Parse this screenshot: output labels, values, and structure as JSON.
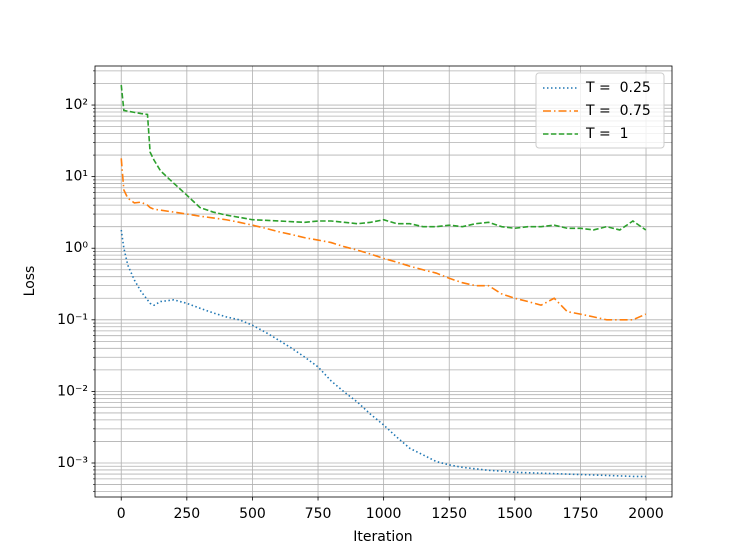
{
  "chart_data": {
    "type": "line",
    "x_label": "Iteration",
    "y_label": "Loss",
    "x": [
      0,
      10,
      25,
      50,
      75,
      100,
      110,
      125,
      150,
      200,
      250,
      300,
      350,
      400,
      450,
      500,
      550,
      600,
      650,
      700,
      750,
      800,
      850,
      900,
      950,
      1000,
      1050,
      1100,
      1150,
      1200,
      1250,
      1300,
      1350,
      1400,
      1450,
      1500,
      1550,
      1600,
      1650,
      1700,
      1750,
      1800,
      1850,
      1900,
      1950,
      1999
    ],
    "series": [
      {
        "name": "T =  0.25",
        "color": "#1f77b4",
        "linestyle": "dotted",
        "values": [
          1.8,
          1.0,
          0.58,
          0.36,
          0.25,
          0.19,
          0.17,
          0.16,
          0.18,
          0.19,
          0.17,
          0.145,
          0.125,
          0.11,
          0.1,
          0.084,
          0.067,
          0.052,
          0.04,
          0.03,
          0.022,
          0.014,
          0.0098,
          0.0071,
          0.0048,
          0.0034,
          0.0023,
          0.0016,
          0.0013,
          0.00105,
          0.00094,
          0.00087,
          0.00083,
          0.00079,
          0.00077,
          0.00074,
          0.00073,
          0.00072,
          0.00071,
          0.0007,
          0.00069,
          0.00068,
          0.00067,
          0.00066,
          0.00065,
          0.00065
        ]
      },
      {
        "name": "T =  0.75",
        "color": "#ff7f0e",
        "linestyle": "dashdot",
        "values": [
          18,
          6.5,
          5.0,
          4.3,
          4.4,
          4.0,
          3.7,
          3.5,
          3.4,
          3.2,
          3.0,
          2.8,
          2.65,
          2.5,
          2.3,
          2.1,
          1.9,
          1.7,
          1.55,
          1.4,
          1.3,
          1.2,
          1.05,
          0.94,
          0.83,
          0.72,
          0.64,
          0.56,
          0.5,
          0.45,
          0.38,
          0.33,
          0.3,
          0.3,
          0.23,
          0.2,
          0.18,
          0.16,
          0.2,
          0.13,
          0.12,
          0.11,
          0.1,
          0.1,
          0.1,
          0.12
        ]
      },
      {
        "name": "T =  1",
        "color": "#2ca02c",
        "linestyle": "dashed",
        "values": [
          190,
          84,
          82,
          79,
          76,
          74,
          22,
          17,
          12,
          8.1,
          5.5,
          3.7,
          3.2,
          2.9,
          2.7,
          2.5,
          2.45,
          2.4,
          2.35,
          2.3,
          2.4,
          2.4,
          2.3,
          2.2,
          2.3,
          2.5,
          2.2,
          2.2,
          2.0,
          2.0,
          2.1,
          2.0,
          2.2,
          2.3,
          2.0,
          1.9,
          2.0,
          2.0,
          2.1,
          1.9,
          1.9,
          1.8,
          2.0,
          1.8,
          2.4,
          1.8
        ]
      }
    ],
    "xlim": [
      -100,
      2099
    ],
    "xticks": [
      0,
      250,
      500,
      750,
      1000,
      1250,
      1500,
      1750,
      2000
    ],
    "ylim": [
      0.000335,
      351
    ],
    "log_y": true,
    "yticks": [
      {
        "value": 0.001,
        "label": "10⁻³"
      },
      {
        "value": 0.01,
        "label": "10⁻²"
      },
      {
        "value": 0.1,
        "label": "10⁻¹"
      },
      {
        "value": 1,
        "label": "10⁰"
      },
      {
        "value": 10,
        "label": "10¹"
      },
      {
        "value": 100,
        "label": "10²"
      }
    ],
    "yminorticks": [
      0.0004,
      0.0005,
      0.0006,
      0.0007,
      0.0008,
      0.0009,
      0.002,
      0.003,
      0.004,
      0.005,
      0.006,
      0.007,
      0.008,
      0.009,
      0.02,
      0.03,
      0.04,
      0.05,
      0.06,
      0.07,
      0.08,
      0.09,
      0.2,
      0.3,
      0.4,
      0.5,
      0.6,
      0.7,
      0.8,
      0.9,
      2,
      3,
      4,
      5,
      6,
      7,
      8,
      9,
      20,
      30,
      40,
      50,
      60,
      70,
      80,
      90,
      200,
      300
    ],
    "grid": true,
    "legend": "upper right"
  }
}
